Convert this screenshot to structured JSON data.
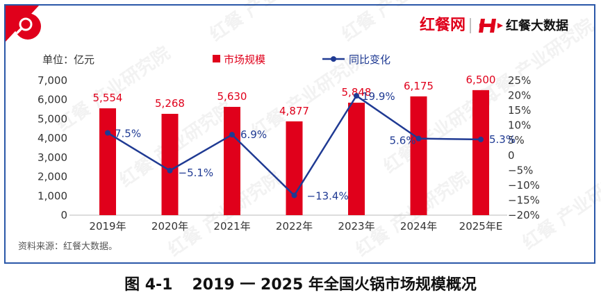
{
  "brand": {
    "logo_text": "红餐网",
    "data_logo_text": "红餐大数据",
    "watermark": "红餐 产业研究院",
    "accent": "#e0001b",
    "line_color": "#1f3a93",
    "frame_color": "#2a57a8"
  },
  "unit_label": "单位：亿元",
  "source_note": "资料来源：红餐大数据。",
  "caption": {
    "figure_no": "图 4-1",
    "title": "2019 一 2025 年全国火锅市场规模概况"
  },
  "chart_data": {
    "type": "bar",
    "categories": [
      "2019年",
      "2020年",
      "2021年",
      "2022年",
      "2023年",
      "2024年",
      "2025年E"
    ],
    "series": [
      {
        "name": "市场规模",
        "type": "bar",
        "axis": "left",
        "color": "#e0001b",
        "values": [
          5554,
          5268,
          5630,
          4877,
          5848,
          6175,
          6500
        ],
        "labels": [
          "5,554",
          "5,268",
          "5,630",
          "4,877",
          "5,848",
          "6,175",
          "6,500"
        ]
      },
      {
        "name": "同比变化",
        "type": "line",
        "axis": "right",
        "color": "#1f3a93",
        "values": [
          7.5,
          -5.1,
          6.9,
          -13.4,
          19.9,
          5.6,
          5.3
        ],
        "labels": [
          "7.5%",
          "−5.1%",
          "6.9%",
          "−13.4%",
          "19.9%",
          "5.6%",
          "5.3%"
        ]
      }
    ],
    "y_left": {
      "range": [
        0,
        7000
      ],
      "ticks": [
        0,
        1000,
        2000,
        3000,
        4000,
        5000,
        6000,
        7000
      ],
      "tick_labels": [
        "0",
        "1,000",
        "2,000",
        "3,000",
        "4,000",
        "5,000",
        "6,000",
        "7,000"
      ]
    },
    "y_right": {
      "range": [
        -20,
        25
      ],
      "ticks": [
        -20,
        -15,
        -10,
        -5,
        0,
        5,
        10,
        15,
        20,
        25
      ],
      "tick_labels": [
        "−20%",
        "−15%",
        "−10%",
        "−5%",
        "0",
        "5%",
        "10%",
        "15%",
        "20%",
        "25%"
      ]
    },
    "legend_position": "top-center",
    "grid": false
  }
}
